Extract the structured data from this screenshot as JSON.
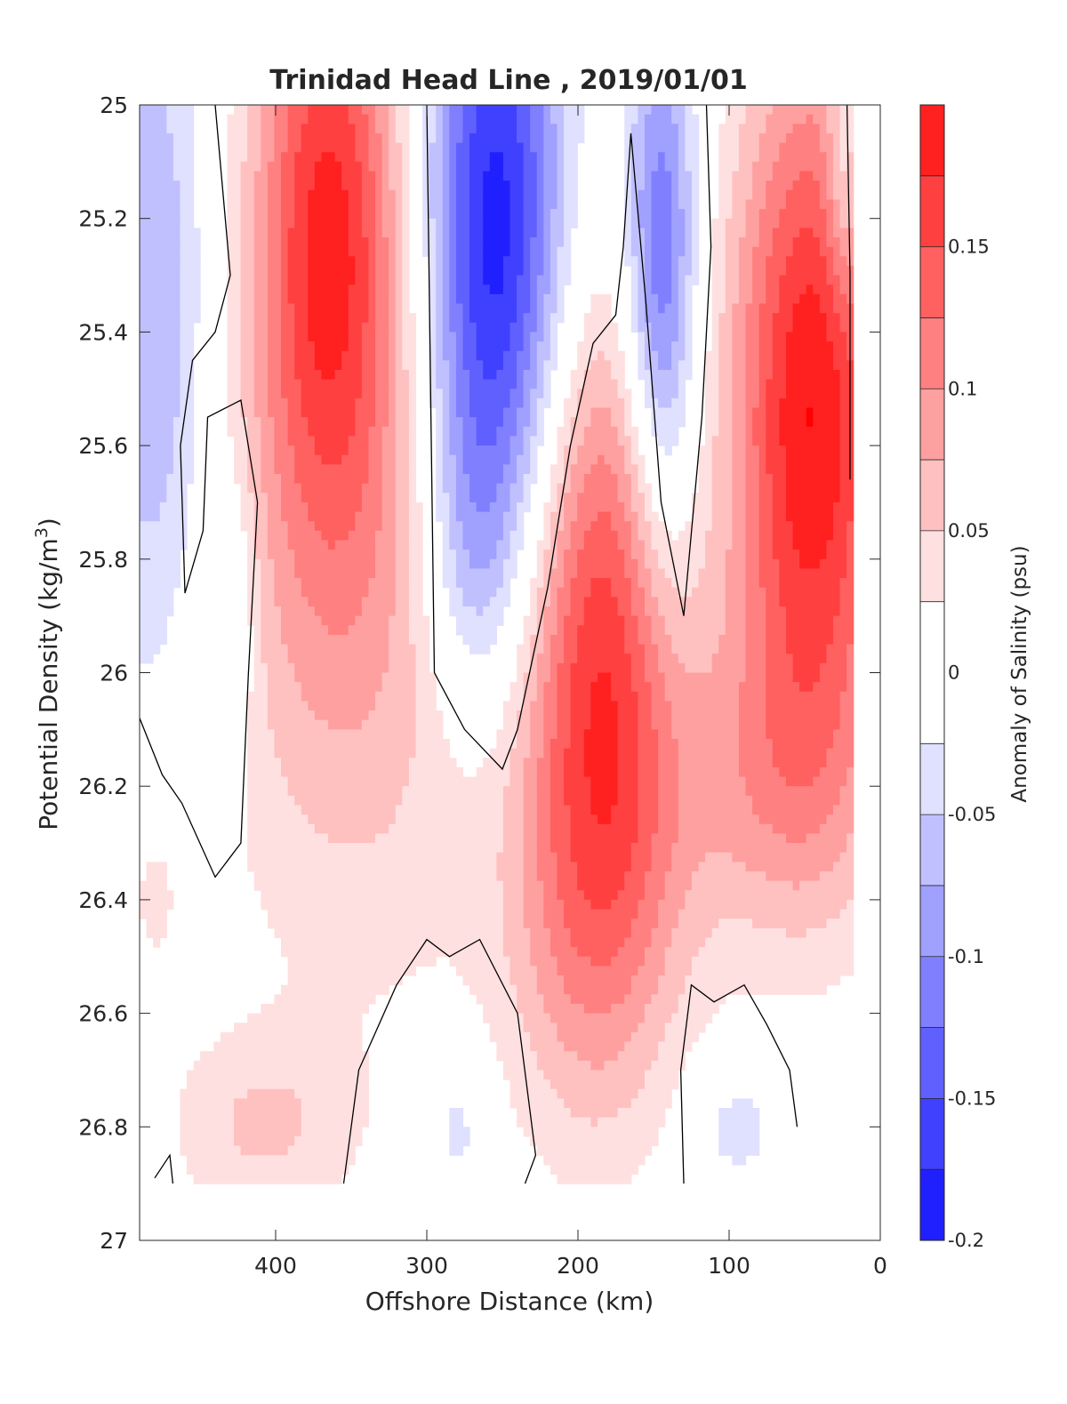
{
  "chart_data": {
    "type": "contourf",
    "title": "Trinidad Head Line , 2019/01/01",
    "xlabel": "Offshore Distance (km)",
    "ylabel_main": "Potential Density (kg/m",
    "ylabel_sup": "3",
    "ylabel_close": ")",
    "x_reversed": true,
    "y_reversed": true,
    "xlim": [
      0,
      490
    ],
    "ylim": [
      25,
      27
    ],
    "xticks": [
      400,
      300,
      200,
      100,
      0
    ],
    "yticks": [
      25,
      25.2,
      25.4,
      25.6,
      25.8,
      26,
      26.2,
      26.4,
      26.6,
      26.8,
      27
    ],
    "colorbar": {
      "label": "Anomaly of Salinity (psu)",
      "limits": [
        -0.2,
        0.2
      ],
      "ticks": [
        -0.2,
        -0.15,
        -0.1,
        -0.05,
        0,
        0.05,
        0.1,
        0.15
      ],
      "levels": [
        -0.2,
        -0.175,
        -0.15,
        -0.125,
        -0.1,
        -0.075,
        -0.05,
        -0.025,
        0.025,
        0.05,
        0.075,
        0.1,
        0.125,
        0.15,
        0.175,
        0.2
      ],
      "colors": [
        "#0000ff",
        "#2020ff",
        "#4040ff",
        "#6060ff",
        "#8080ff",
        "#a0a0ff",
        "#c0c0ff",
        "#e0e0ff",
        "#ffffff",
        "#ffe0e0",
        "#ffc0c0",
        "#ffa0a0",
        "#ff8080",
        "#ff6060",
        "#ff4040",
        "#ff2020",
        "#ff0000"
      ]
    },
    "data_extent": {
      "x_max": 490,
      "x_min": 20,
      "y_max": 26.9
    },
    "features": [
      {
        "sign": "positive",
        "x": 365,
        "y": 25.2,
        "sx": 35,
        "sy": 0.4,
        "amp": 0.17
      },
      {
        "sign": "positive",
        "x": 345,
        "y": 25.9,
        "sx": 70,
        "sy": 0.45,
        "amp": 0.07
      },
      {
        "sign": "negative",
        "x": 255,
        "y": 25.25,
        "sx": 33,
        "sy": 0.42,
        "amp": 0.2
      },
      {
        "sign": "negative",
        "x": 270,
        "y": 25.8,
        "sx": 22,
        "sy": 0.2,
        "amp": 0.05
      },
      {
        "sign": "positive",
        "x": 185,
        "y": 25.95,
        "sx": 36,
        "sy": 0.42,
        "amp": 0.155
      },
      {
        "sign": "positive",
        "x": 190,
        "y": 26.45,
        "sx": 45,
        "sy": 0.28,
        "amp": 0.06
      },
      {
        "sign": "negative",
        "x": 145,
        "y": 25.3,
        "sx": 17,
        "sy": 0.33,
        "amp": 0.14
      },
      {
        "sign": "positive",
        "x": 45,
        "y": 25.55,
        "sx": 38,
        "sy": 0.45,
        "amp": 0.2
      },
      {
        "sign": "positive",
        "x": 75,
        "y": 26.2,
        "sx": 55,
        "sy": 0.2,
        "amp": 0.06
      },
      {
        "sign": "negative",
        "x": 480,
        "y": 25.4,
        "sx": 25,
        "sy": 0.45,
        "amp": 0.08
      },
      {
        "sign": "negative",
        "x": 430,
        "y": 25.9,
        "sx": 12,
        "sy": 0.18,
        "amp": 0.05
      },
      {
        "sign": "negative",
        "x": 25,
        "y": 25.15,
        "sx": 8,
        "sy": 0.15,
        "amp": 0.06
      },
      {
        "sign": "positive",
        "x": 480,
        "y": 26.4,
        "sx": 10,
        "sy": 0.08,
        "amp": 0.04
      },
      {
        "sign": "positive",
        "x": 410,
        "y": 26.8,
        "sx": 45,
        "sy": 0.12,
        "amp": 0.05
      },
      {
        "sign": "negative",
        "x": 280,
        "y": 26.8,
        "sx": 15,
        "sy": 0.1,
        "amp": 0.04
      },
      {
        "sign": "negative",
        "x": 95,
        "y": 26.8,
        "sx": 22,
        "sy": 0.08,
        "amp": 0.04
      }
    ],
    "zero_contours": [
      [
        [
          440,
          25
        ],
        [
          435,
          25.15
        ],
        [
          430,
          25.3
        ],
        [
          440,
          25.4
        ],
        [
          455,
          25.45
        ],
        [
          463,
          25.6
        ],
        [
          460,
          25.86
        ],
        [
          448,
          25.75
        ],
        [
          445,
          25.55
        ],
        [
          423,
          25.52
        ],
        [
          412,
          25.7
        ],
        [
          418,
          26.0
        ],
        [
          423,
          26.3
        ],
        [
          440,
          26.36
        ],
        [
          462,
          26.23
        ],
        [
          475,
          26.18
        ],
        [
          490,
          26.08
        ]
      ],
      [
        [
          300,
          25
        ],
        [
          298,
          25.4
        ],
        [
          295,
          26.0
        ],
        [
          285,
          26.05
        ],
        [
          275,
          26.1
        ],
        [
          250,
          26.17
        ],
        [
          240,
          26.1
        ],
        [
          220,
          25.85
        ],
        [
          205,
          25.6
        ],
        [
          190,
          25.42
        ],
        [
          175,
          25.37
        ],
        [
          170,
          25.25
        ],
        [
          165,
          25.05
        ],
        [
          155,
          25.35
        ],
        [
          145,
          25.7
        ],
        [
          130,
          25.9
        ],
        [
          118,
          25.55
        ],
        [
          112,
          25.25
        ],
        [
          115,
          25.0
        ]
      ],
      [
        [
          355,
          26.9
        ],
        [
          345,
          26.7
        ],
        [
          320,
          26.55
        ],
        [
          300,
          26.47
        ],
        [
          285,
          26.5
        ],
        [
          265,
          26.47
        ],
        [
          240,
          26.6
        ],
        [
          228,
          26.85
        ],
        [
          235,
          26.9
        ]
      ],
      [
        [
          130,
          26.9
        ],
        [
          132,
          26.7
        ],
        [
          125,
          26.55
        ],
        [
          110,
          26.58
        ],
        [
          90,
          26.55
        ],
        [
          75,
          26.62
        ],
        [
          60,
          26.7
        ],
        [
          55,
          26.8
        ]
      ],
      [
        [
          480,
          26.89
        ],
        [
          470,
          26.85
        ],
        [
          468,
          26.9
        ]
      ],
      [
        [
          20,
          25.66
        ],
        [
          20,
          25.3
        ],
        [
          22,
          25.0
        ]
      ]
    ]
  }
}
